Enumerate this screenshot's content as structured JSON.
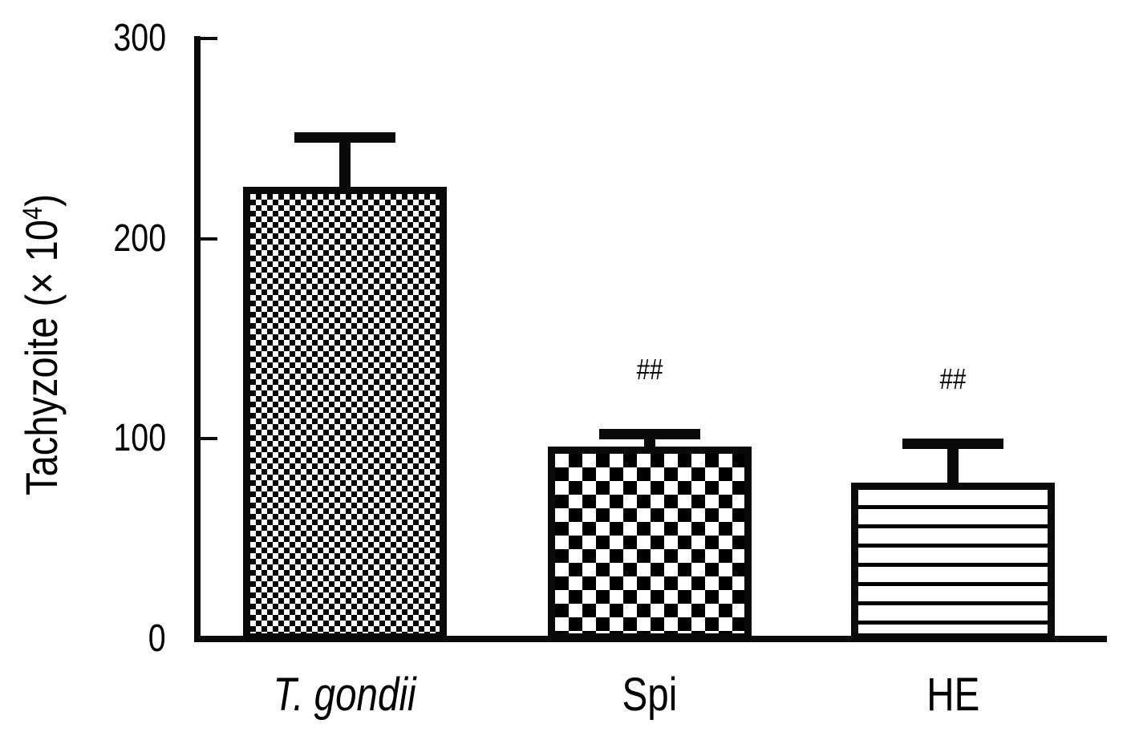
{
  "figure": {
    "background_color": "#ffffff",
    "ink_color": "#0a0a0a"
  },
  "y_axis": {
    "label": "Tachyzoite (× 10⁴)",
    "label_parts": {
      "pre": "Tachyzoite (× 10",
      "sup": "4",
      "post": ")"
    },
    "tick_labels": [
      "0",
      "100",
      "200",
      "300"
    ]
  },
  "x_axis": {
    "categories": [
      {
        "label": "T. gondii",
        "italic": true
      },
      {
        "label": "Spi",
        "italic": false
      },
      {
        "label": "HE",
        "italic": false
      }
    ]
  },
  "chart_data": {
    "type": "bar",
    "categories": [
      "T. gondii",
      "Spi",
      "HE"
    ],
    "values": [
      226,
      96,
      78
    ],
    "error_upper": [
      253,
      105,
      100
    ],
    "annotations": [
      "",
      "##",
      "##"
    ],
    "bar_patterns": [
      "fine-checker",
      "coarse-checker",
      "horizontal-stripes"
    ],
    "title": "",
    "xlabel": "",
    "ylabel": "Tachyzoite (× 10⁴)",
    "ylim": [
      0,
      300
    ],
    "yticks": [
      0,
      100,
      200,
      300
    ],
    "grid": false,
    "legend": "none",
    "error_bars": "upper SD whiskers with caps",
    "fill_color": "#000000",
    "bar_outline_color": "#000000"
  }
}
